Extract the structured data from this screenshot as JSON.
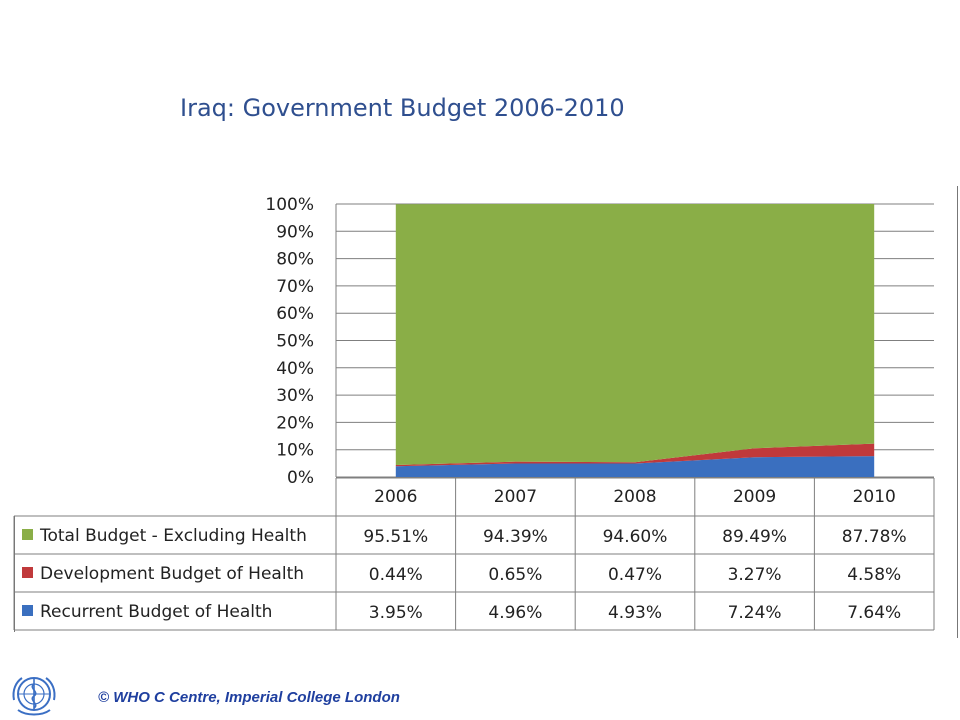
{
  "title": "Iraq: Government Budget 2006-2010",
  "footer": "© WHO C Centre, Imperial College London",
  "logo_icon": "who-emblem-icon",
  "colors": {
    "total_budget": "#8aae47",
    "development": "#c0393b",
    "recurrent": "#3a6fbf",
    "title": "#2f4f8f",
    "footer": "#1f3f9f"
  },
  "chart_data": {
    "type": "area",
    "stacked": true,
    "normalized": true,
    "categories": [
      "2006",
      "2007",
      "2008",
      "2009",
      "2010"
    ],
    "series": [
      {
        "name": "Recurrent Budget of Health",
        "values": [
          3.95,
          4.96,
          4.93,
          7.24,
          7.64
        ],
        "labels": [
          "3.95%",
          "4.96%",
          "4.93%",
          "7.24%",
          "7.64%"
        ]
      },
      {
        "name": "Development Budget of Health",
        "values": [
          0.44,
          0.65,
          0.47,
          3.27,
          4.58
        ],
        "labels": [
          "0.44%",
          "0.65%",
          "0.47%",
          "3.27%",
          "4.58%"
        ]
      },
      {
        "name": "Total Budget - Excluding Health",
        "values": [
          95.51,
          94.39,
          94.6,
          89.49,
          87.78
        ],
        "labels": [
          "95.51%",
          "94.39%",
          "94.60%",
          "89.49%",
          "87.78%"
        ]
      }
    ],
    "table_row_order": [
      "Total Budget - Excluding Health",
      "Development Budget of Health",
      "Recurrent Budget of Health"
    ],
    "yticks": [
      "0%",
      "10%",
      "20%",
      "30%",
      "40%",
      "50%",
      "60%",
      "70%",
      "80%",
      "90%",
      "100%"
    ],
    "ylim": [
      0,
      100
    ],
    "grid": true,
    "legend": "data-table-left"
  }
}
